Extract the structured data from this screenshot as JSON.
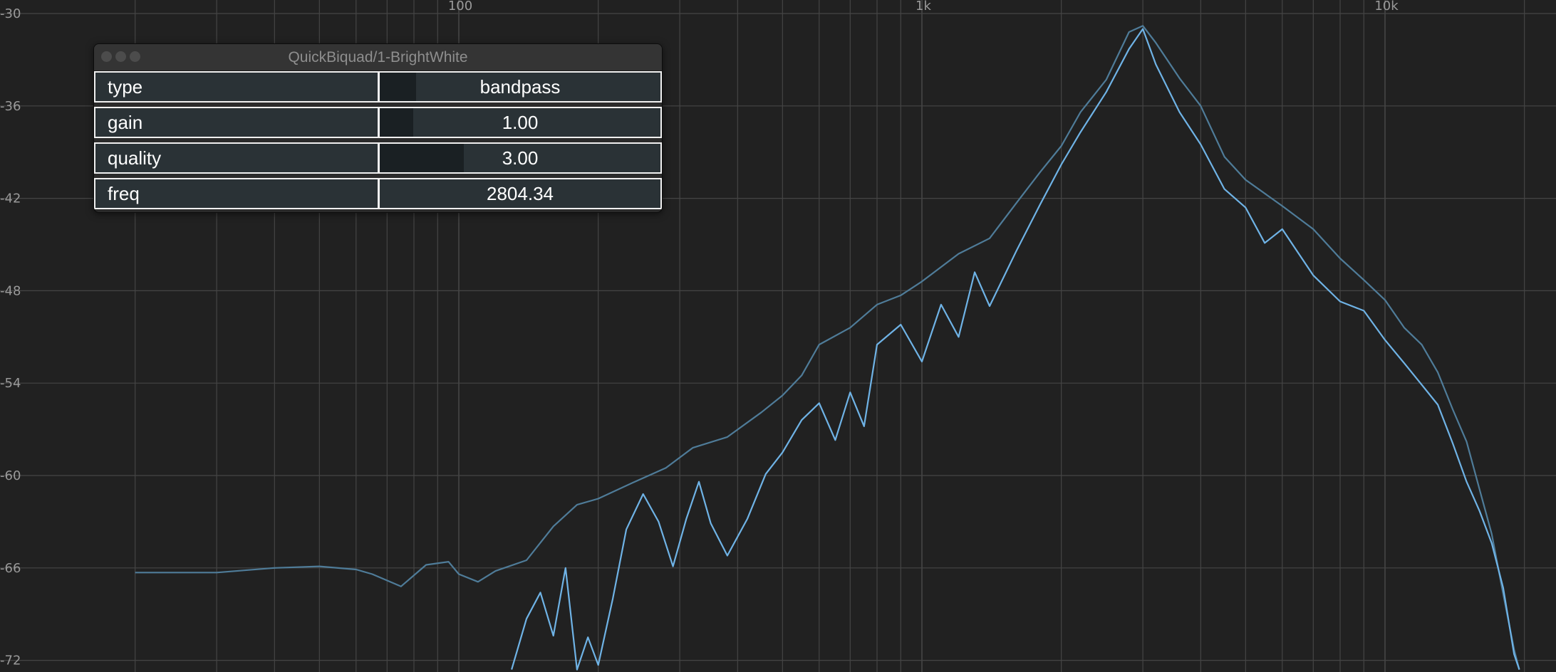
{
  "window": {
    "title": "QuickBiquad/1-BrightWhite"
  },
  "params": [
    {
      "label": "type",
      "value": "bandpass",
      "slider_fraction": 0.13
    },
    {
      "label": "gain",
      "value": "1.00",
      "slider_fraction": 0.12
    },
    {
      "label": "quality",
      "value": "3.00",
      "slider_fraction": 0.3
    },
    {
      "label": "freq",
      "value": "2804.34",
      "slider_fraction": 0.0
    }
  ],
  "colors": {
    "background": "#212121",
    "grid": "#454545",
    "series_bright": "#6fb3e6",
    "series_dim": "#4f7c99"
  },
  "chart_data": {
    "type": "line",
    "xscale": "log",
    "xlim": [
      10,
      20000
    ],
    "ylim": [
      -72.5,
      -30
    ],
    "x_ticks": [
      {
        "value": 100,
        "label": "100"
      },
      {
        "value": 1000,
        "label": "1k"
      },
      {
        "value": 10000,
        "label": "10k"
      }
    ],
    "y_ticks": [
      {
        "value": -30,
        "label": "-30"
      },
      {
        "value": -36,
        "label": "-36"
      },
      {
        "value": -42,
        "label": "-42"
      },
      {
        "value": -48,
        "label": "-48"
      },
      {
        "value": -54,
        "label": "-54"
      },
      {
        "value": -60,
        "label": "-60"
      },
      {
        "value": -66,
        "label": "-66"
      },
      {
        "value": -72,
        "label": "-72"
      }
    ],
    "grid": true,
    "series": [
      {
        "style": "dim",
        "points": [
          [
            20,
            -66.3
          ],
          [
            30,
            -66.3
          ],
          [
            40,
            -66.0
          ],
          [
            50,
            -65.9
          ],
          [
            60,
            -66.1
          ],
          [
            65,
            -66.4
          ],
          [
            75,
            -67.2
          ],
          [
            85,
            -65.8
          ],
          [
            95,
            -65.6
          ],
          [
            100,
            -66.4
          ],
          [
            110,
            -66.9
          ],
          [
            120,
            -66.2
          ],
          [
            140,
            -65.5
          ],
          [
            160,
            -63.3
          ],
          [
            180,
            -61.9
          ],
          [
            200,
            -61.5
          ],
          [
            240,
            -60.4
          ],
          [
            280,
            -59.5
          ],
          [
            320,
            -58.2
          ],
          [
            380,
            -57.5
          ],
          [
            450,
            -55.9
          ],
          [
            500,
            -54.8
          ],
          [
            550,
            -53.5
          ],
          [
            600,
            -51.5
          ],
          [
            700,
            -50.4
          ],
          [
            800,
            -48.9
          ],
          [
            900,
            -48.3
          ],
          [
            1000,
            -47.4
          ],
          [
            1200,
            -45.6
          ],
          [
            1400,
            -44.6
          ],
          [
            1600,
            -42.3
          ],
          [
            1800,
            -40.3
          ],
          [
            2000,
            -38.6
          ],
          [
            2200,
            -36.4
          ],
          [
            2500,
            -34.3
          ],
          [
            2800,
            -31.2
          ],
          [
            3000,
            -30.8
          ],
          [
            3200,
            -31.9
          ],
          [
            3600,
            -34.2
          ],
          [
            4000,
            -36.0
          ],
          [
            4500,
            -39.3
          ],
          [
            5000,
            -40.8
          ],
          [
            6000,
            -42.5
          ],
          [
            7000,
            -44.0
          ],
          [
            8000,
            -45.9
          ],
          [
            9000,
            -47.3
          ],
          [
            10000,
            -48.6
          ],
          [
            11000,
            -50.4
          ],
          [
            12000,
            -51.5
          ],
          [
            13000,
            -53.3
          ],
          [
            14000,
            -55.7
          ],
          [
            15000,
            -57.8
          ],
          [
            16000,
            -60.9
          ],
          [
            17000,
            -63.8
          ],
          [
            18000,
            -67.7
          ],
          [
            19000,
            -71.3
          ],
          [
            19500,
            -72.6
          ]
        ]
      },
      {
        "style": "bright",
        "points": [
          [
            130,
            -72.6
          ],
          [
            140,
            -69.3
          ],
          [
            150,
            -67.6
          ],
          [
            160,
            -70.4
          ],
          [
            170,
            -66.0
          ],
          [
            180,
            -72.6
          ],
          [
            190,
            -70.5
          ],
          [
            200,
            -72.3
          ],
          [
            215,
            -68.0
          ],
          [
            230,
            -63.5
          ],
          [
            250,
            -61.2
          ],
          [
            270,
            -63.0
          ],
          [
            290,
            -65.9
          ],
          [
            310,
            -62.8
          ],
          [
            330,
            -60.4
          ],
          [
            350,
            -63.1
          ],
          [
            380,
            -65.2
          ],
          [
            420,
            -62.8
          ],
          [
            460,
            -59.9
          ],
          [
            500,
            -58.5
          ],
          [
            550,
            -56.4
          ],
          [
            600,
            -55.3
          ],
          [
            650,
            -57.7
          ],
          [
            700,
            -54.6
          ],
          [
            750,
            -56.8
          ],
          [
            800,
            -51.5
          ],
          [
            900,
            -50.2
          ],
          [
            1000,
            -52.6
          ],
          [
            1100,
            -48.9
          ],
          [
            1200,
            -51.0
          ],
          [
            1300,
            -46.8
          ],
          [
            1400,
            -49.0
          ],
          [
            1600,
            -45.4
          ],
          [
            1800,
            -42.4
          ],
          [
            2000,
            -39.8
          ],
          [
            2200,
            -37.7
          ],
          [
            2500,
            -35.1
          ],
          [
            2800,
            -32.3
          ],
          [
            3000,
            -31.0
          ],
          [
            3200,
            -33.3
          ],
          [
            3600,
            -36.4
          ],
          [
            4000,
            -38.5
          ],
          [
            4500,
            -41.4
          ],
          [
            5000,
            -42.6
          ],
          [
            5500,
            -44.9
          ],
          [
            6000,
            -44.0
          ],
          [
            7000,
            -47.0
          ],
          [
            8000,
            -48.7
          ],
          [
            9000,
            -49.3
          ],
          [
            10000,
            -51.2
          ],
          [
            11000,
            -52.7
          ],
          [
            12000,
            -54.1
          ],
          [
            13000,
            -55.4
          ],
          [
            14000,
            -57.9
          ],
          [
            15000,
            -60.4
          ],
          [
            16000,
            -62.3
          ],
          [
            17000,
            -64.4
          ],
          [
            18000,
            -67.3
          ],
          [
            19000,
            -71.6
          ],
          [
            19500,
            -72.6
          ]
        ]
      }
    ]
  }
}
